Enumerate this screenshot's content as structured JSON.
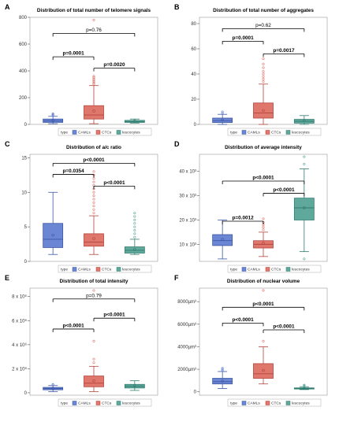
{
  "colors": {
    "CAMLs": "#6b86d3",
    "CTCs": "#e0776d",
    "leucocytes": "#5fa99c",
    "CAMLs_edge": "#3b56a6",
    "CTCs_edge": "#b5453c",
    "leucocytes_edge": "#2f7b6e"
  },
  "legend": {
    "title": "type",
    "items": [
      "CAMLs",
      "CTCs",
      "leucocytes"
    ]
  },
  "chart_data": [
    {
      "letter": "A",
      "type": "box",
      "title": "Distribution of total number of telomere signals",
      "categories": [
        "CAMLs",
        "CTCs",
        "leucocytes"
      ],
      "ylim": [
        0,
        800
      ],
      "yticks": [
        0,
        200,
        400,
        600,
        800
      ],
      "ytick_labels": [
        "0",
        "200",
        "400",
        "600",
        "800"
      ],
      "boxes": [
        {
          "q1": 15,
          "median": 25,
          "q3": 40,
          "whisker_low": 5,
          "whisker_high": 60,
          "mean": 28,
          "outliers": [
            65,
            70,
            75,
            80
          ]
        },
        {
          "q1": 40,
          "median": 70,
          "q3": 140,
          "whisker_low": 5,
          "whisker_high": 290,
          "mean": 100,
          "outliers": [
            300,
            310,
            320,
            330,
            340,
            350,
            360,
            780
          ]
        },
        {
          "q1": 15,
          "median": 20,
          "q3": 30,
          "whisker_low": 10,
          "whisker_high": 40,
          "mean": 25,
          "outliers": []
        }
      ],
      "pvalues": [
        {
          "label": "p=0.76",
          "bold": false,
          "from": 0,
          "to": 2,
          "y": 680
        },
        {
          "label": "p=0.0001",
          "bold": true,
          "from": 0,
          "to": 1,
          "y": 505
        },
        {
          "label": "p=0.0020",
          "bold": true,
          "from": 1,
          "to": 2,
          "y": 420
        }
      ]
    },
    {
      "letter": "B",
      "type": "box",
      "title": "Distribution of total number of aggregates",
      "categories": [
        "CAMLs",
        "CTCs",
        "leucocytes"
      ],
      "ylim": [
        0,
        85
      ],
      "yticks": [
        0,
        20,
        40,
        60,
        80
      ],
      "ytick_labels": [
        "0",
        "20",
        "40",
        "60",
        "80"
      ],
      "boxes": [
        {
          "q1": 1.5,
          "median": 3,
          "q3": 5,
          "whisker_low": 0,
          "whisker_high": 8,
          "mean": 3.5,
          "outliers": [
            9,
            10
          ]
        },
        {
          "q1": 5,
          "median": 9,
          "q3": 17,
          "whisker_low": 0,
          "whisker_high": 32,
          "mean": 11,
          "outliers": [
            34,
            36,
            38,
            40,
            42,
            45,
            48,
            52
          ]
        },
        {
          "q1": 1,
          "median": 2.5,
          "q3": 4,
          "whisker_low": 0,
          "whisker_high": 7,
          "mean": 3,
          "outliers": []
        }
      ],
      "pvalues": [
        {
          "label": "p=0.62",
          "bold": false,
          "from": 0,
          "to": 2,
          "y": 76
        },
        {
          "label": "p=0.0001",
          "bold": true,
          "from": 0,
          "to": 1,
          "y": 66
        },
        {
          "label": "p=0.0017",
          "bold": true,
          "from": 1,
          "to": 2,
          "y": 56
        }
      ]
    },
    {
      "letter": "C",
      "type": "box",
      "title": "Distribution of a/c ratio",
      "categories": [
        "CAMLs",
        "CTCs",
        "leucocytes"
      ],
      "ylim": [
        0,
        15.5
      ],
      "yticks": [
        0,
        5,
        10,
        15
      ],
      "ytick_labels": [
        "0",
        "5",
        "10",
        "15"
      ],
      "boxes": [
        {
          "q1": 2.0,
          "median": 3.2,
          "q3": 5.5,
          "whisker_low": 1.0,
          "whisker_high": 10.0,
          "mean": 3.8,
          "outliers": []
        },
        {
          "q1": 2.2,
          "median": 2.8,
          "q3": 4.0,
          "whisker_low": 1.0,
          "whisker_high": 6.6,
          "mean": 3.3,
          "outliers": [
            7,
            7.5,
            8,
            8.5,
            9,
            9.5,
            10,
            10.5,
            11,
            11.5,
            12,
            12.5,
            13
          ]
        },
        {
          "q1": 1.2,
          "median": 1.6,
          "q3": 2.1,
          "whisker_low": 1.0,
          "whisker_high": 3.2,
          "mean": 1.7,
          "outliers": [
            3.5,
            4,
            4.5,
            5,
            5.5,
            6,
            6.5,
            7
          ]
        }
      ],
      "pvalues": [
        {
          "label": "p<0.0001",
          "bold": true,
          "from": 0,
          "to": 2,
          "y": 14.2
        },
        {
          "label": "p=0.0354",
          "bold": true,
          "from": 0,
          "to": 1,
          "y": 12.6
        },
        {
          "label": "p<0.0001",
          "bold": true,
          "from": 1,
          "to": 2,
          "y": 10.9
        }
      ]
    },
    {
      "letter": "D",
      "type": "box",
      "title": "Distribution of average intensity",
      "categories": [
        "CAMLs",
        "CTCs",
        "leucocytes"
      ],
      "ylim": [
        3000,
        47000
      ],
      "yticks": [
        10000,
        20000,
        30000,
        40000
      ],
      "ytick_labels": [
        "10 x 10³",
        "20 x 10³",
        "30 x 10³",
        "40 x 10³"
      ],
      "boxes": [
        {
          "q1": 9500,
          "median": 11500,
          "q3": 14000,
          "whisker_low": 4000,
          "whisker_high": 20000,
          "mean": 12000,
          "outliers": []
        },
        {
          "q1": 8500,
          "median": 10000,
          "q3": 11500,
          "whisker_low": 5000,
          "whisker_high": 15000,
          "mean": 10500,
          "outliers": [
            16000,
            17000,
            18000,
            19000,
            20500
          ]
        },
        {
          "q1": 20000,
          "median": 25000,
          "q3": 29000,
          "whisker_low": 7000,
          "whisker_high": 41000,
          "mean": 25000,
          "outliers": [
            4000,
            43000,
            46000
          ]
        }
      ],
      "pvalues": [
        {
          "label": "p<0.0001",
          "bold": true,
          "from": 0,
          "to": 2,
          "y": 36000
        },
        {
          "label": "p<0.0001",
          "bold": true,
          "from": 1,
          "to": 2,
          "y": 31000
        },
        {
          "label": "p=0.0012",
          "bold": true,
          "from": 0,
          "to": 1,
          "y": 19500
        }
      ]
    },
    {
      "letter": "E",
      "type": "box",
      "title": "Distribution of total intensity",
      "categories": [
        "CAMLs",
        "CTCs",
        "leucocytes"
      ],
      "ylim": [
        -200000,
        8700000
      ],
      "yticks": [
        0,
        2000000,
        4000000,
        6000000,
        8000000
      ],
      "ytick_labels": [
        "0",
        "2 x 10⁶",
        "4 x 10⁶",
        "6 x 10⁶",
        "8 x 10⁶"
      ],
      "boxes": [
        {
          "q1": 250000,
          "median": 350000,
          "q3": 450000,
          "whisker_low": 100000,
          "whisker_high": 600000,
          "mean": 380000,
          "outliers": [
            650000,
            700000
          ]
        },
        {
          "q1": 500000,
          "median": 800000,
          "q3": 1400000,
          "whisker_low": 100000,
          "whisker_high": 2200000,
          "mean": 1000000,
          "outliers": [
            2500000,
            2800000,
            4300000,
            8500000
          ]
        },
        {
          "q1": 400000,
          "median": 550000,
          "q3": 700000,
          "whisker_low": 200000,
          "whisker_high": 1000000,
          "mean": 570000,
          "outliers": []
        }
      ],
      "pvalues": [
        {
          "label": "p=0.79",
          "bold": false,
          "from": 0,
          "to": 2,
          "y": 7800000
        },
        {
          "label": "p<0.0001",
          "bold": true,
          "from": 1,
          "to": 2,
          "y": 6200000
        },
        {
          "label": "p<0.0001",
          "bold": true,
          "from": 0,
          "to": 1,
          "y": 5300000
        }
      ]
    },
    {
      "letter": "F",
      "type": "box",
      "title": "Distribution of nuclear volume",
      "categories": [
        "CAMLs",
        "CTCs",
        "leucocytes"
      ],
      "ylim": [
        -300,
        9200
      ],
      "yticks": [
        0,
        2000,
        4000,
        6000,
        8000
      ],
      "ytick_labels": [
        "0",
        "2000µm³",
        "4000µm³",
        "6000µm³",
        "8000µm³"
      ],
      "boxes": [
        {
          "q1": 700,
          "median": 900,
          "q3": 1200,
          "whisker_low": 300,
          "whisker_high": 1800,
          "mean": 950,
          "outliers": [
            1900,
            2000,
            2100
          ]
        },
        {
          "q1": 1200,
          "median": 1600,
          "q3": 2500,
          "whisker_low": 700,
          "whisker_high": 4000,
          "mean": 1900,
          "outliers": [
            4500,
            9000
          ]
        },
        {
          "q1": 250,
          "median": 300,
          "q3": 350,
          "whisker_low": 200,
          "whisker_high": 450,
          "mean": 300,
          "outliers": [
            500,
            550,
            600
          ]
        }
      ],
      "pvalues": [
        {
          "label": "p<0.0001",
          "bold": true,
          "from": 0,
          "to": 2,
          "y": 7500
        },
        {
          "label": "p<0.0001",
          "bold": true,
          "from": 0,
          "to": 1,
          "y": 6100
        },
        {
          "label": "p<0.0001",
          "bold": true,
          "from": 1,
          "to": 2,
          "y": 5500
        }
      ]
    }
  ]
}
